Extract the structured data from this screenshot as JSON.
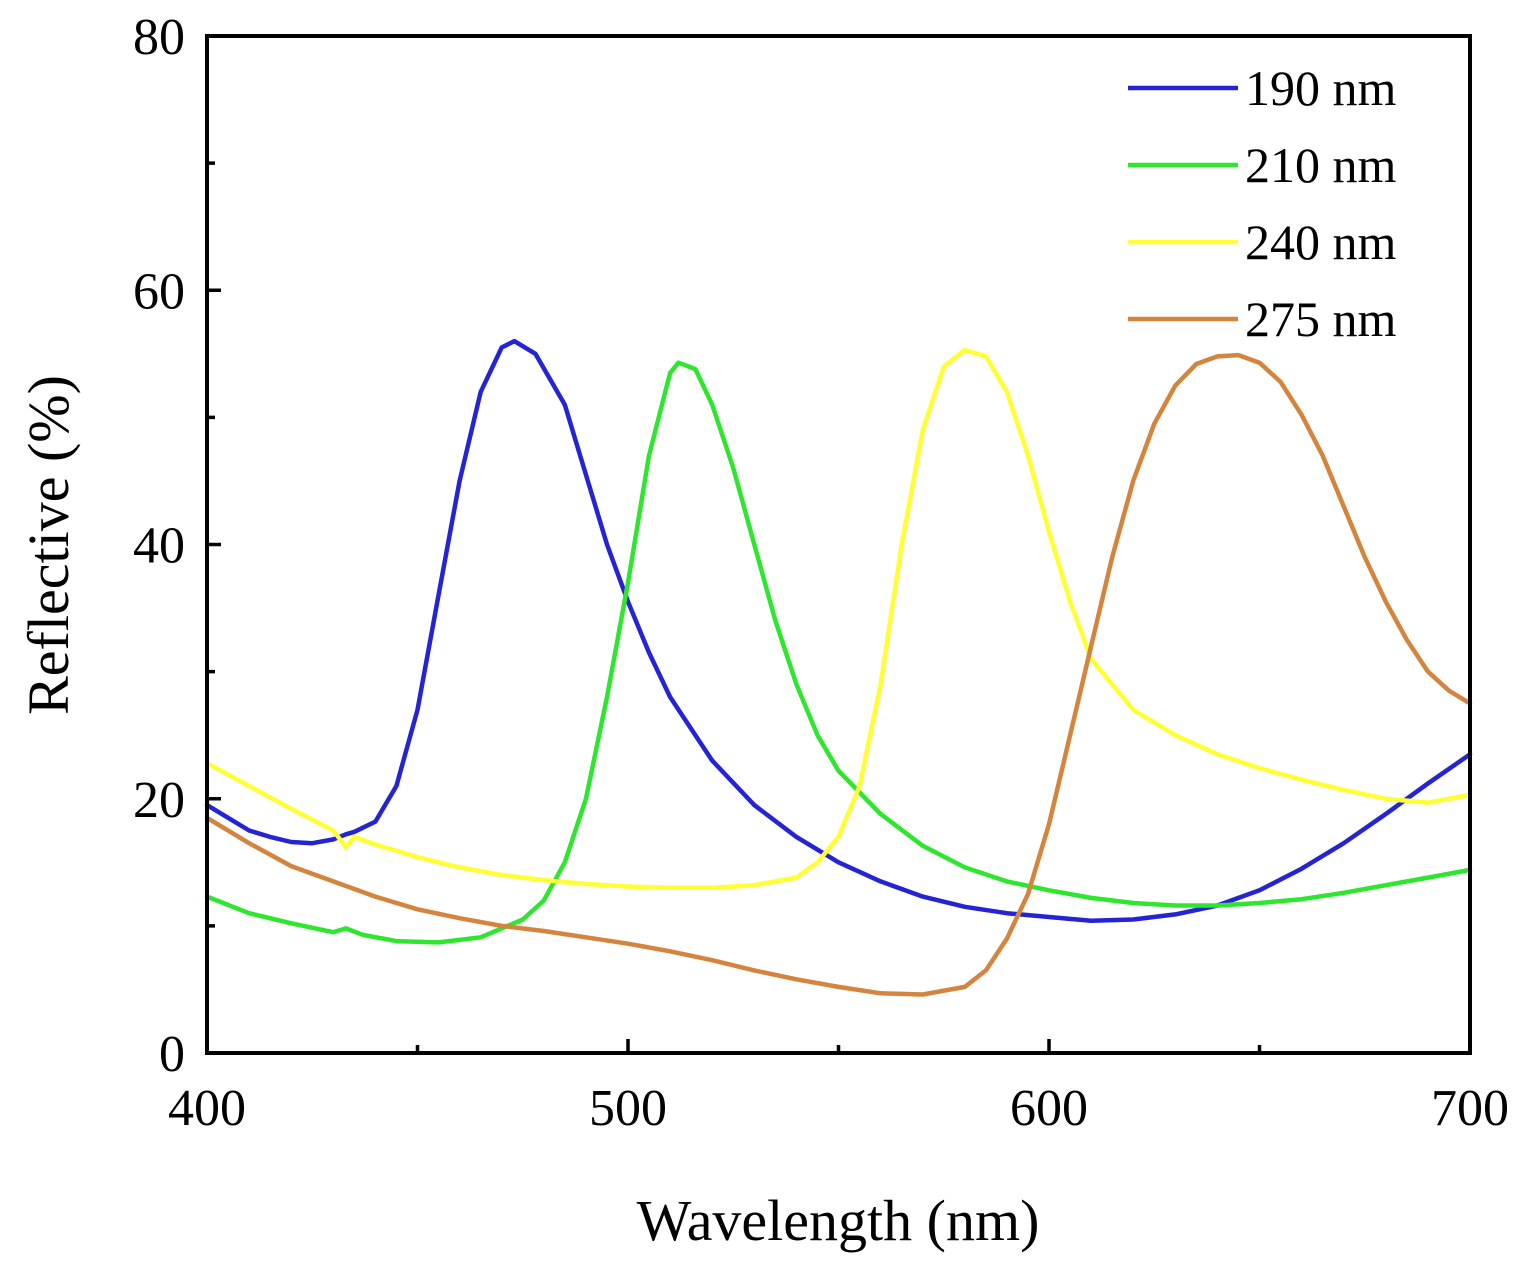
{
  "chart_data": {
    "type": "line",
    "title": "",
    "xlabel": "Wavelength (nm)",
    "ylabel": "Reflective (%)",
    "xlim": [
      400,
      700
    ],
    "ylim": [
      0,
      80
    ],
    "x_ticks": [
      400,
      500,
      600,
      700
    ],
    "y_ticks": [
      0,
      20,
      40,
      60,
      80
    ],
    "x_minor_ticks": [
      450,
      550,
      650
    ],
    "y_minor_ticks": [
      10,
      30,
      50,
      70
    ],
    "grid": false,
    "legend_position": "top-right",
    "series": [
      {
        "name": "190 nm",
        "color": "#2424d4",
        "points": [
          [
            400,
            19.5
          ],
          [
            405,
            18.5
          ],
          [
            410,
            17.5
          ],
          [
            415,
            17
          ],
          [
            420,
            16.6
          ],
          [
            425,
            16.5
          ],
          [
            430,
            16.8
          ],
          [
            433,
            17.2
          ],
          [
            435,
            17.4
          ],
          [
            440,
            18.2
          ],
          [
            445,
            21
          ],
          [
            450,
            27
          ],
          [
            455,
            36
          ],
          [
            460,
            45
          ],
          [
            465,
            52
          ],
          [
            470,
            55.5
          ],
          [
            473,
            56
          ],
          [
            478,
            55
          ],
          [
            485,
            51
          ],
          [
            490,
            45.5
          ],
          [
            495,
            40
          ],
          [
            500,
            35.5
          ],
          [
            505,
            31.5
          ],
          [
            510,
            28
          ],
          [
            520,
            23
          ],
          [
            530,
            19.5
          ],
          [
            540,
            17
          ],
          [
            550,
            15
          ],
          [
            560,
            13.5
          ],
          [
            570,
            12.3
          ],
          [
            580,
            11.5
          ],
          [
            590,
            11
          ],
          [
            600,
            10.7
          ],
          [
            610,
            10.4
          ],
          [
            620,
            10.5
          ],
          [
            630,
            10.9
          ],
          [
            640,
            11.6
          ],
          [
            650,
            12.8
          ],
          [
            660,
            14.5
          ],
          [
            670,
            16.5
          ],
          [
            680,
            18.8
          ],
          [
            690,
            21.2
          ],
          [
            700,
            23.5
          ]
        ]
      },
      {
        "name": "210 nm",
        "color": "#2ee62e",
        "points": [
          [
            400,
            12.3
          ],
          [
            410,
            11
          ],
          [
            420,
            10.2
          ],
          [
            430,
            9.5
          ],
          [
            433,
            9.8
          ],
          [
            437,
            9.3
          ],
          [
            445,
            8.8
          ],
          [
            455,
            8.7
          ],
          [
            465,
            9.1
          ],
          [
            475,
            10.5
          ],
          [
            480,
            12
          ],
          [
            485,
            15
          ],
          [
            490,
            20
          ],
          [
            495,
            28
          ],
          [
            500,
            37
          ],
          [
            505,
            47
          ],
          [
            510,
            53.5
          ],
          [
            512,
            54.3
          ],
          [
            516,
            53.8
          ],
          [
            520,
            51
          ],
          [
            525,
            46
          ],
          [
            530,
            40
          ],
          [
            535,
            34
          ],
          [
            540,
            29
          ],
          [
            545,
            25
          ],
          [
            550,
            22.2
          ],
          [
            560,
            18.8
          ],
          [
            570,
            16.3
          ],
          [
            580,
            14.6
          ],
          [
            590,
            13.5
          ],
          [
            600,
            12.8
          ],
          [
            610,
            12.2
          ],
          [
            620,
            11.8
          ],
          [
            630,
            11.6
          ],
          [
            640,
            11.6
          ],
          [
            650,
            11.8
          ],
          [
            660,
            12.1
          ],
          [
            670,
            12.6
          ],
          [
            680,
            13.2
          ],
          [
            690,
            13.8
          ],
          [
            700,
            14.4
          ]
        ]
      },
      {
        "name": "240 nm",
        "color": "#ffff33",
        "points": [
          [
            400,
            22.8
          ],
          [
            410,
            21
          ],
          [
            420,
            19.2
          ],
          [
            430,
            17.5
          ],
          [
            433,
            16.2
          ],
          [
            435,
            17
          ],
          [
            440,
            16.4
          ],
          [
            450,
            15.4
          ],
          [
            460,
            14.6
          ],
          [
            470,
            14
          ],
          [
            480,
            13.6
          ],
          [
            490,
            13.3
          ],
          [
            500,
            13.1
          ],
          [
            510,
            13
          ],
          [
            520,
            13
          ],
          [
            530,
            13.2
          ],
          [
            540,
            13.8
          ],
          [
            545,
            15
          ],
          [
            550,
            17
          ],
          [
            555,
            21
          ],
          [
            560,
            29
          ],
          [
            565,
            40
          ],
          [
            570,
            49
          ],
          [
            575,
            54
          ],
          [
            580,
            55.3
          ],
          [
            585,
            54.8
          ],
          [
            590,
            52
          ],
          [
            595,
            47
          ],
          [
            600,
            41
          ],
          [
            605,
            35.5
          ],
          [
            610,
            31
          ],
          [
            620,
            27
          ],
          [
            630,
            25
          ],
          [
            640,
            23.5
          ],
          [
            650,
            22.4
          ],
          [
            660,
            21.5
          ],
          [
            670,
            20.7
          ],
          [
            680,
            20
          ],
          [
            690,
            19.7
          ],
          [
            700,
            20.3
          ]
        ]
      },
      {
        "name": "275 nm",
        "color": "#d4843c",
        "points": [
          [
            400,
            18.5
          ],
          [
            410,
            16.5
          ],
          [
            420,
            14.7
          ],
          [
            430,
            13.5
          ],
          [
            440,
            12.3
          ],
          [
            450,
            11.3
          ],
          [
            460,
            10.6
          ],
          [
            470,
            10
          ],
          [
            480,
            9.6
          ],
          [
            490,
            9.1
          ],
          [
            500,
            8.6
          ],
          [
            510,
            8
          ],
          [
            520,
            7.3
          ],
          [
            530,
            6.5
          ],
          [
            540,
            5.8
          ],
          [
            550,
            5.2
          ],
          [
            560,
            4.7
          ],
          [
            570,
            4.6
          ],
          [
            580,
            5.2
          ],
          [
            585,
            6.5
          ],
          [
            590,
            9
          ],
          [
            595,
            12.5
          ],
          [
            600,
            18
          ],
          [
            605,
            25
          ],
          [
            610,
            32
          ],
          [
            615,
            39
          ],
          [
            620,
            45
          ],
          [
            625,
            49.5
          ],
          [
            630,
            52.5
          ],
          [
            635,
            54.2
          ],
          [
            640,
            54.8
          ],
          [
            645,
            54.9
          ],
          [
            650,
            54.3
          ],
          [
            655,
            52.8
          ],
          [
            660,
            50.2
          ],
          [
            665,
            47
          ],
          [
            670,
            43
          ],
          [
            675,
            39
          ],
          [
            680,
            35.5
          ],
          [
            685,
            32.5
          ],
          [
            690,
            30
          ],
          [
            695,
            28.5
          ],
          [
            700,
            27.5
          ]
        ]
      }
    ]
  }
}
